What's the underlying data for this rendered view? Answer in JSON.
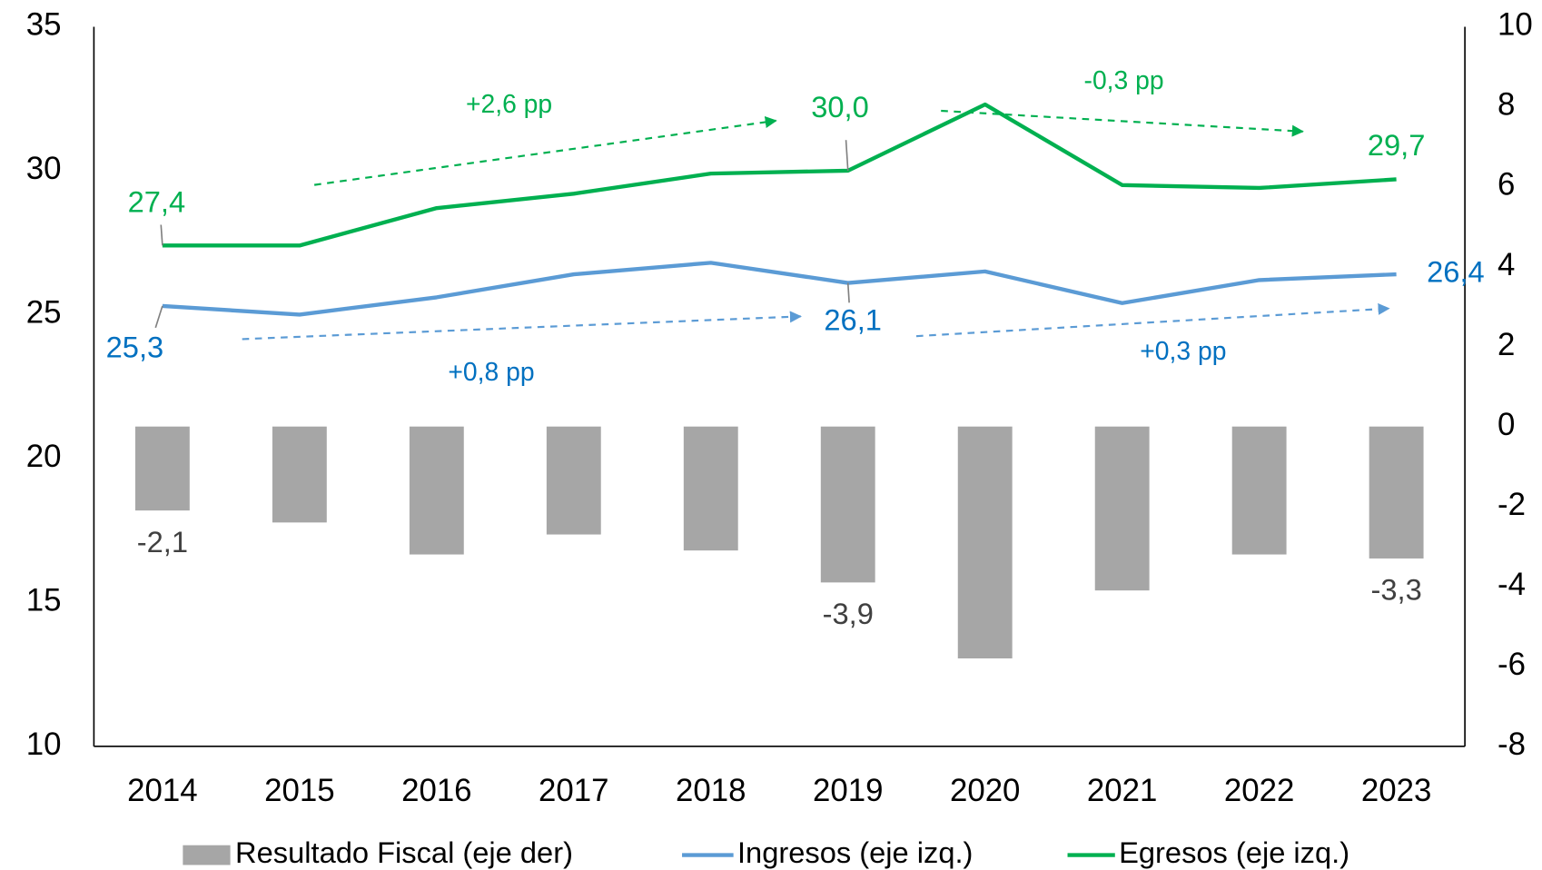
{
  "chart_data": {
    "type": "bar-line",
    "categories": [
      "2014",
      "2015",
      "2016",
      "2017",
      "2018",
      "2019",
      "2020",
      "2021",
      "2022",
      "2023"
    ],
    "series": [
      {
        "name": "Resultado Fiscal (eje der)",
        "type": "bar",
        "axis": "y2",
        "color": "#a6a6a6",
        "values": [
          -2.1,
          -2.4,
          -3.2,
          -2.7,
          -3.1,
          -3.9,
          -5.8,
          -4.1,
          -3.2,
          -3.3
        ],
        "value_labels": [
          "-2,1",
          null,
          null,
          null,
          null,
          "-3,9",
          null,
          null,
          null,
          "-3,3"
        ]
      },
      {
        "name": "Ingresos (eje izq.)",
        "type": "line",
        "axis": "y",
        "color": "#5b9bd5",
        "values": [
          25.3,
          25.0,
          25.6,
          26.4,
          26.8,
          26.1,
          26.5,
          25.4,
          26.2,
          26.4
        ],
        "value_labels": [
          "25,3",
          null,
          null,
          null,
          null,
          "26,1",
          null,
          null,
          null,
          "26,4"
        ]
      },
      {
        "name": "Egresos (eje izq.)",
        "type": "line",
        "axis": "y",
        "color": "#00b050",
        "values": [
          27.4,
          27.4,
          28.7,
          29.2,
          29.9,
          30.0,
          32.3,
          29.5,
          29.4,
          29.7
        ],
        "value_labels": [
          "27,4",
          null,
          null,
          null,
          null,
          "30,0",
          null,
          null,
          null,
          "29,7"
        ]
      }
    ],
    "ylim": [
      10,
      35
    ],
    "yticks": [
      10,
      15,
      20,
      25,
      30,
      35
    ],
    "y2lim": [
      -8,
      10
    ],
    "y2ticks": [
      -8,
      -6,
      -4,
      -2,
      0,
      2,
      4,
      6,
      8,
      10
    ],
    "annotations": [
      {
        "text": "+2,6 pp",
        "color": "#00b050"
      },
      {
        "text": "-0,3 pp",
        "color": "#00b050"
      },
      {
        "text": "+0,8 pp",
        "color": "#0070c0"
      },
      {
        "text": "+0,3 pp",
        "color": "#0070c0"
      }
    ],
    "legend": "bottom"
  }
}
